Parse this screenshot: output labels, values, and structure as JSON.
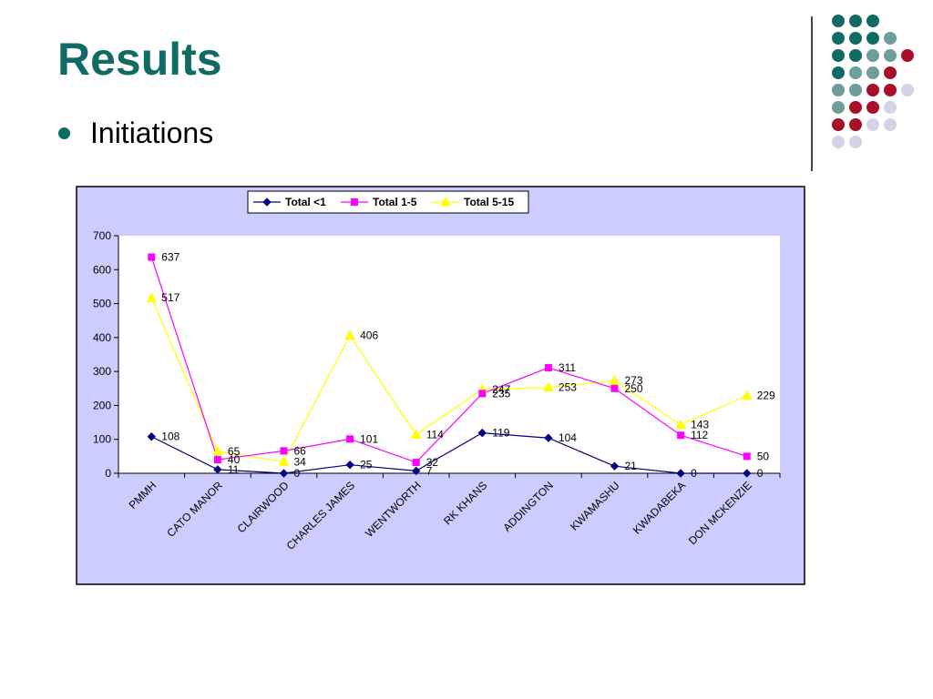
{
  "slide": {
    "title": "Results",
    "bullet": "Initiations"
  },
  "decor": {
    "dot_rows": [
      [
        "teal",
        "teal",
        "teal"
      ],
      [
        "teal",
        "teal",
        "teal",
        "greyteal"
      ],
      [
        "teal",
        "teal",
        "greyteal",
        "greyteal",
        "red"
      ],
      [
        "teal",
        "greyteal",
        "greyteal",
        "red"
      ],
      [
        "greyteal",
        "greyteal",
        "red",
        "red",
        "lavender"
      ],
      [
        "greyteal",
        "red",
        "red",
        "lavender"
      ],
      [
        "red",
        "red",
        "lavender",
        "lavender"
      ],
      [
        "lavender",
        "lavender"
      ]
    ],
    "colors": {
      "teal": "#0f6b63",
      "greyteal": "#6e9e9a",
      "red": "#a8102a",
      "lavender": "#d4d4e8"
    }
  },
  "chart_data": {
    "type": "line",
    "categories": [
      "PMMH",
      "CATO MANOR",
      "CLAIRWOOD",
      "CHARLES JAMES",
      "WENTWORTH",
      "RK KHANS",
      "ADDINGTON",
      "KWAMASHU",
      "KWADABEKA",
      "DON MCKENZIE"
    ],
    "series": [
      {
        "name": "Total <1",
        "values": [
          108,
          11,
          0,
          25,
          7,
          119,
          104,
          21,
          0,
          0
        ],
        "color": "#000080",
        "marker": "diamond"
      },
      {
        "name": "Total 1-5",
        "values": [
          637,
          40,
          66,
          101,
          32,
          235,
          311,
          250,
          112,
          50
        ],
        "color": "#ff00ff",
        "marker": "square"
      },
      {
        "name": "Total 5-15",
        "values": [
          517,
          65,
          34,
          406,
          114,
          247,
          253,
          273,
          143,
          229
        ],
        "color": "#ffff00",
        "marker": "triangle"
      }
    ],
    "ylim": [
      0,
      700
    ],
    "yticks": [
      0,
      100,
      200,
      300,
      400,
      500,
      600,
      700
    ],
    "legend_position": "top",
    "plot_background": "#ccccff",
    "grid": false
  }
}
